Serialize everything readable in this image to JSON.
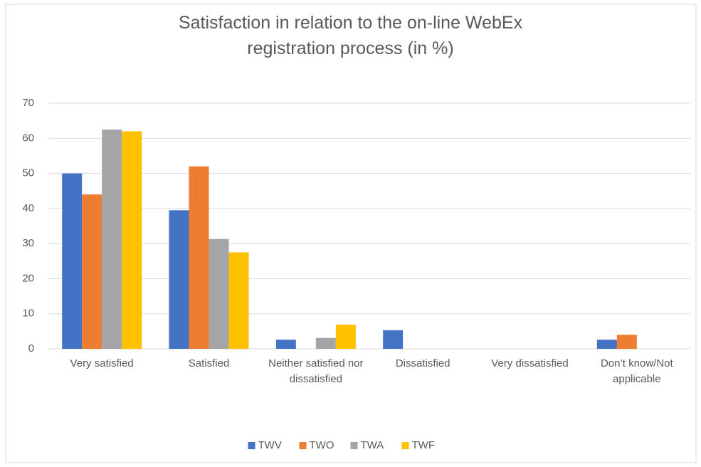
{
  "chart_data": {
    "type": "bar",
    "title": "Satisfaction in relation to the on-line WebEx registration process (in %)",
    "categories": [
      "Very satisfied",
      "Satisfied",
      "Neither satisfied nor dissatisfied",
      "Dissatisfied",
      "Very dissatisfied",
      "Don’t know/Not applicable"
    ],
    "series": [
      {
        "name": "TWV",
        "color": "#4472c4",
        "values": [
          50,
          39.5,
          2.6,
          5.3,
          0,
          2.6
        ]
      },
      {
        "name": "TWO",
        "color": "#ed7d31",
        "values": [
          44,
          52,
          0,
          0,
          0,
          4
        ]
      },
      {
        "name": "TWA",
        "color": "#a5a5a5",
        "values": [
          62.5,
          31.3,
          3.1,
          0,
          0,
          0
        ]
      },
      {
        "name": "TWF",
        "color": "#ffc000",
        "values": [
          62,
          27.5,
          6.9,
          0,
          0,
          0
        ]
      }
    ],
    "ylim": [
      0,
      70
    ],
    "yticks": [
      0,
      10,
      20,
      30,
      40,
      50,
      60,
      70
    ],
    "grid": true,
    "legend": "bottom"
  }
}
